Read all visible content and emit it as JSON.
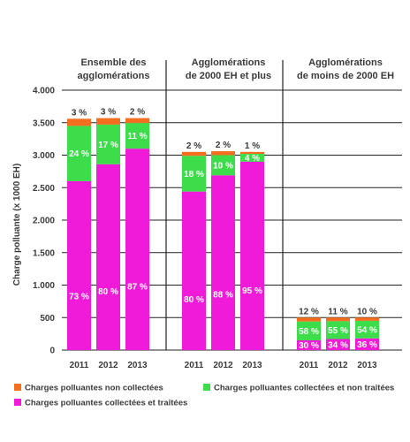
{
  "chart_data": {
    "type": "bar",
    "stacked": true,
    "ylabel": "Charge polluante (x 1000 EH)",
    "ylim": [
      0,
      4000
    ],
    "yticks": [
      {
        "value": 0,
        "label": "0"
      },
      {
        "value": 500,
        "label": "500"
      },
      {
        "value": 1000,
        "label": "1.000"
      },
      {
        "value": 1500,
        "label": "1.500"
      },
      {
        "value": 2000,
        "label": "2.000"
      },
      {
        "value": 2500,
        "label": "2.500"
      },
      {
        "value": 3000,
        "label": "3.000"
      },
      {
        "value": 3500,
        "label": "3.500"
      },
      {
        "value": 4000,
        "label": "4.000"
      }
    ],
    "grid": true,
    "legend_position": "bottom",
    "series": [
      {
        "name": "Charges polluantes collectées et traitées",
        "color": "#f01bd8"
      },
      {
        "name": "Charges polluantes collectées et non traitées",
        "color": "#3ddc4a"
      },
      {
        "name": "Charges polluantes non collectées",
        "color": "#f36f1f"
      }
    ],
    "groups": [
      {
        "title_lines": [
          "Ensemble des",
          "agglomérations"
        ],
        "bars": [
          {
            "year": "2011",
            "values": [
              2600,
              850,
              110
            ],
            "labels": [
              "73 %",
              "24 %",
              "3 %"
            ]
          },
          {
            "year": "2012",
            "values": [
              2860,
              610,
              100
            ],
            "labels": [
              "80 %",
              "17 %",
              "3 %"
            ]
          },
          {
            "year": "2013",
            "values": [
              3100,
              395,
              75
            ],
            "labels": [
              "87 %",
              "11 %",
              "2 %"
            ]
          }
        ]
      },
      {
        "title_lines": [
          "Agglomérations",
          "de 2000 EH et plus"
        ],
        "bars": [
          {
            "year": "2011",
            "values": [
              2440,
              550,
              60
            ],
            "labels": [
              "80 %",
              "18 %",
              "2 %"
            ]
          },
          {
            "year": "2012",
            "values": [
              2690,
              310,
              60
            ],
            "labels": [
              "88 %",
              "10 %",
              "2 %"
            ]
          },
          {
            "year": "2013",
            "values": [
              2900,
              120,
              30
            ],
            "labels": [
              "95 %",
              "4 %",
              "1 %"
            ]
          }
        ]
      },
      {
        "title_lines": [
          "Agglomérations",
          "de moins de 2000 EH"
        ],
        "bars": [
          {
            "year": "2011",
            "values": [
              150,
              290,
              60
            ],
            "labels": [
              "30 %",
              "58 %",
              "12 %"
            ]
          },
          {
            "year": "2012",
            "values": [
              170,
              275,
              55
            ],
            "labels": [
              "34 %",
              "55 %",
              "11 %"
            ]
          },
          {
            "year": "2013",
            "values": [
              180,
              270,
              50
            ],
            "labels": [
              "36 %",
              "54 %",
              "10 %"
            ]
          }
        ]
      }
    ]
  }
}
